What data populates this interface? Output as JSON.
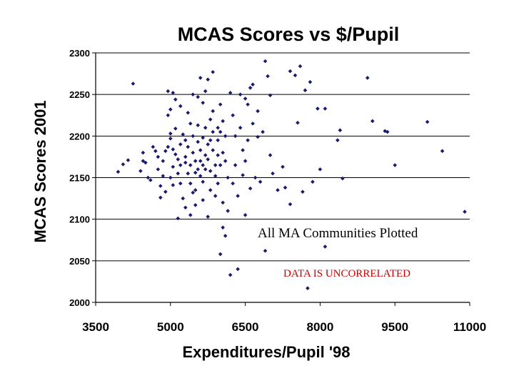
{
  "chart_data": {
    "type": "scatter",
    "title": "MCAS Scores vs $/Pupil",
    "xlabel": "Expenditures/Pupil '98",
    "ylabel": "MCAS Scores 2001",
    "xlim": [
      3500,
      11000
    ],
    "ylim": [
      2000,
      2300
    ],
    "xticks": [
      3500,
      5000,
      6500,
      8000,
      9500,
      11000
    ],
    "yticks": [
      2000,
      2050,
      2100,
      2150,
      2200,
      2250,
      2300
    ],
    "grid": "horizontal",
    "marker_color": "#1a1a6e",
    "annotations": [
      {
        "text": "All MA Communities Plotted",
        "color": "#000000"
      },
      {
        "text": "DATA IS UNCORRELATED",
        "color": "#cc0000"
      }
    ],
    "points": [
      [
        3950,
        2157
      ],
      [
        4050,
        2166
      ],
      [
        4150,
        2171
      ],
      [
        4250,
        2263
      ],
      [
        4400,
        2158
      ],
      [
        4450,
        2170
      ],
      [
        4450,
        2180
      ],
      [
        4500,
        2168
      ],
      [
        4550,
        2150
      ],
      [
        4600,
        2147
      ],
      [
        4650,
        2187
      ],
      [
        4700,
        2182
      ],
      [
        4750,
        2175
      ],
      [
        4750,
        2160
      ],
      [
        4800,
        2126
      ],
      [
        4800,
        2140
      ],
      [
        4850,
        2170
      ],
      [
        4850,
        2152
      ],
      [
        4900,
        2182
      ],
      [
        4900,
        2133
      ],
      [
        4950,
        2187
      ],
      [
        4950,
        2254
      ],
      [
        4950,
        2225
      ],
      [
        5000,
        2232
      ],
      [
        5000,
        2197
      ],
      [
        5000,
        2150
      ],
      [
        5000,
        2203
      ],
      [
        5050,
        2252
      ],
      [
        5050,
        2184
      ],
      [
        5050,
        2163
      ],
      [
        5050,
        2141
      ],
      [
        5100,
        2209
      ],
      [
        5100,
        2178
      ],
      [
        5100,
        2244
      ],
      [
        5150,
        2101
      ],
      [
        5150,
        2172
      ],
      [
        5150,
        2155
      ],
      [
        5200,
        2190
      ],
      [
        5200,
        2236
      ],
      [
        5200,
        2165
      ],
      [
        5200,
        2143
      ],
      [
        5250,
        2202
      ],
      [
        5250,
        2125
      ],
      [
        5300,
        2195
      ],
      [
        5300,
        2175
      ],
      [
        5300,
        2168
      ],
      [
        5300,
        2114
      ],
      [
        5350,
        2228
      ],
      [
        5350,
        2187
      ],
      [
        5350,
        2155
      ],
      [
        5400,
        2215
      ],
      [
        5400,
        2165
      ],
      [
        5400,
        2143
      ],
      [
        5400,
        2105
      ],
      [
        5450,
        2200
      ],
      [
        5450,
        2180
      ],
      [
        5450,
        2250
      ],
      [
        5450,
        2132
      ],
      [
        5500,
        2170
      ],
      [
        5500,
        2156
      ],
      [
        5500,
        2135
      ],
      [
        5500,
        2117
      ],
      [
        5550,
        2213
      ],
      [
        5550,
        2193
      ],
      [
        5550,
        2160
      ],
      [
        5550,
        2247
      ],
      [
        5600,
        2183
      ],
      [
        5600,
        2170
      ],
      [
        5600,
        2152
      ],
      [
        5600,
        2270
      ],
      [
        5650,
        2240
      ],
      [
        5650,
        2198
      ],
      [
        5650,
        2165
      ],
      [
        5650,
        2145
      ],
      [
        5650,
        2123
      ],
      [
        5700,
        2254
      ],
      [
        5700,
        2210
      ],
      [
        5700,
        2177
      ],
      [
        5700,
        2160
      ],
      [
        5750,
        2190
      ],
      [
        5750,
        2172
      ],
      [
        5750,
        2268
      ],
      [
        5750,
        2103
      ],
      [
        5800,
        2220
      ],
      [
        5800,
        2195
      ],
      [
        5800,
        2158
      ],
      [
        5800,
        2135
      ],
      [
        5850,
        2230
      ],
      [
        5850,
        2205
      ],
      [
        5850,
        2183
      ],
      [
        5850,
        2277
      ],
      [
        5900,
        2165
      ],
      [
        5900,
        2152
      ],
      [
        5900,
        2128
      ],
      [
        5950,
        2210
      ],
      [
        5950,
        2195
      ],
      [
        5950,
        2177
      ],
      [
        5950,
        2143
      ],
      [
        6000,
        2238
      ],
      [
        6000,
        2205
      ],
      [
        6000,
        2165
      ],
      [
        6000,
        2058
      ],
      [
        6050,
        2218
      ],
      [
        6050,
        2180
      ],
      [
        6050,
        2120
      ],
      [
        6050,
        2090
      ],
      [
        6100,
        2200
      ],
      [
        6100,
        2170
      ],
      [
        6100,
        2080
      ],
      [
        6150,
        2110
      ],
      [
        6150,
        2150
      ],
      [
        6200,
        2252
      ],
      [
        6200,
        2033
      ],
      [
        6250,
        2143
      ],
      [
        6250,
        2225
      ],
      [
        6300,
        2165
      ],
      [
        6300,
        2200
      ],
      [
        6350,
        2128
      ],
      [
        6350,
        2040
      ],
      [
        6400,
        2250
      ],
      [
        6400,
        2210
      ],
      [
        6450,
        2183
      ],
      [
        6450,
        2153
      ],
      [
        6500,
        2245
      ],
      [
        6500,
        2170
      ],
      [
        6500,
        2105
      ],
      [
        6550,
        2238
      ],
      [
        6550,
        2195
      ],
      [
        6600,
        2258
      ],
      [
        6600,
        2137
      ],
      [
        6650,
        2262
      ],
      [
        6650,
        2215
      ],
      [
        6700,
        2150
      ],
      [
        6750,
        2230
      ],
      [
        6750,
        2199
      ],
      [
        6800,
        2145
      ],
      [
        6850,
        2205
      ],
      [
        6900,
        2290
      ],
      [
        6900,
        2062
      ],
      [
        6950,
        2272
      ],
      [
        7000,
        2249
      ],
      [
        7000,
        2177
      ],
      [
        7050,
        2155
      ],
      [
        7150,
        2135
      ],
      [
        7250,
        2163
      ],
      [
        7300,
        2138
      ],
      [
        7400,
        2278
      ],
      [
        7400,
        2118
      ],
      [
        7500,
        2273
      ],
      [
        7550,
        2216
      ],
      [
        7600,
        2284
      ],
      [
        7650,
        2133
      ],
      [
        7700,
        2255
      ],
      [
        7750,
        2017
      ],
      [
        7800,
        2265
      ],
      [
        7850,
        2145
      ],
      [
        7950,
        2233
      ],
      [
        8000,
        2160
      ],
      [
        8100,
        2233
      ],
      [
        8100,
        2067
      ],
      [
        8350,
        2195
      ],
      [
        8400,
        2207
      ],
      [
        8450,
        2149
      ],
      [
        8950,
        2270
      ],
      [
        9050,
        2218
      ],
      [
        9300,
        2206
      ],
      [
        9350,
        2205
      ],
      [
        9500,
        2165
      ],
      [
        10150,
        2217
      ],
      [
        10450,
        2182
      ],
      [
        10900,
        2109
      ]
    ]
  }
}
